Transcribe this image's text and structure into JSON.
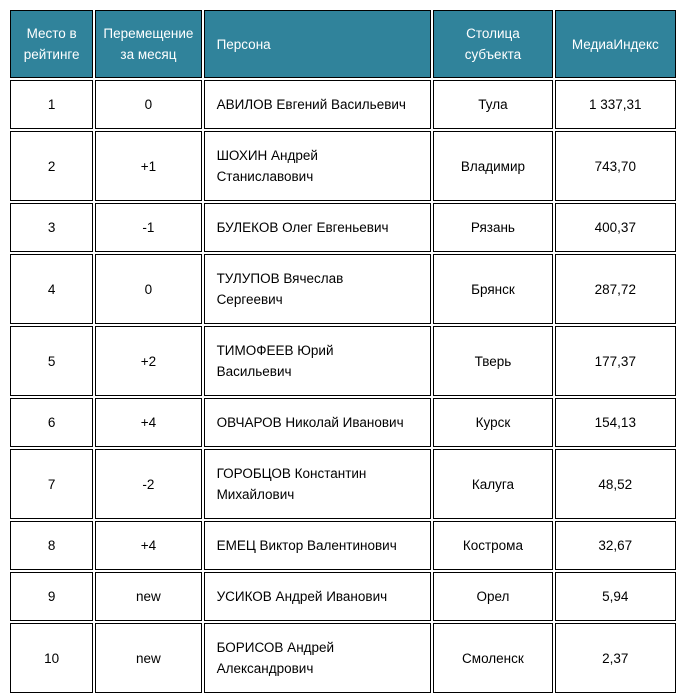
{
  "styles": {
    "header_background": "#30839B",
    "header_text_color": "#FFFFFF",
    "border_color": "#000000",
    "body_text_color": "#000000"
  },
  "chart_data": {
    "type": "table",
    "columns": [
      "Место в\nрейтинге",
      "Перемещение\nза месяц",
      "Персона",
      "Столица\nсубъекта",
      "МедиаИндекс"
    ],
    "rows": [
      [
        "1",
        "0",
        "АВИЛОВ Евгений Васильевич",
        "Тула",
        "1 337,31"
      ],
      [
        "2",
        "+1",
        "ШОХИН Андрей\nСтаниславович",
        "Владимир",
        "743,70"
      ],
      [
        "3",
        "-1",
        "БУЛЕКОВ Олег Евгеньевич",
        "Рязань",
        "400,37"
      ],
      [
        "4",
        "0",
        "ТУЛУПОВ Вячеслав\nСергеевич",
        "Брянск",
        "287,72"
      ],
      [
        "5",
        "+2",
        "ТИМОФЕЕВ Юрий\nВасильевич",
        "Тверь",
        "177,37"
      ],
      [
        "6",
        "+4",
        "ОВЧАРОВ Николай Иванович",
        "Курск",
        "154,13"
      ],
      [
        "7",
        "-2",
        "ГОРОБЦОВ Константин\nМихайлович",
        "Калуга",
        "48,52"
      ],
      [
        "8",
        "+4",
        "ЕМЕЦ Виктор Валентинович",
        "Кострома",
        "32,67"
      ],
      [
        "9",
        "new",
        "УСИКОВ Андрей Иванович",
        "Орел",
        "5,94"
      ],
      [
        "10",
        "new",
        "БОРИСОВ Андрей\nАлександрович",
        "Смоленск",
        "2,37"
      ]
    ]
  }
}
